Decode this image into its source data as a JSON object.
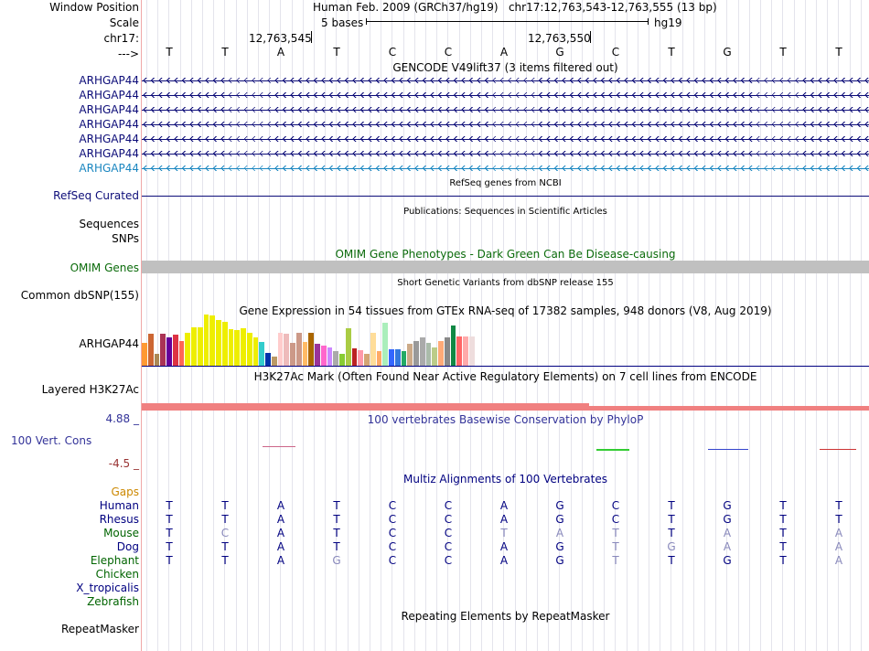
{
  "header": {
    "window_position_label": "Window Position",
    "window_position_text": "Human Feb. 2009 (GRCh37/hg19)   chr17:12,763,543-12,763,555 (13 bp)",
    "scale_label": "Scale",
    "scale_text": "5 bases",
    "scale_db": "hg19",
    "chrom_label": "chr17:",
    "coord_1": "12,763,545",
    "coord_2": "12,763,550",
    "strand_label": "--->",
    "bases": [
      "T",
      "T",
      "A",
      "T",
      "C",
      "C",
      "A",
      "G",
      "C",
      "T",
      "G",
      "T",
      "T"
    ]
  },
  "gencode": {
    "title": "GENCODE V49lift37 (3 items filtered out)",
    "items": [
      "ARHGAP44",
      "ARHGAP44",
      "ARHGAP44",
      "ARHGAP44",
      "ARHGAP44",
      "ARHGAP44",
      "ARHGAP44"
    ],
    "color": "#0c0c78",
    "last_color": "#1a86c0"
  },
  "refseq": {
    "label": "RefSeq Curated",
    "title": "RefSeq genes from NCBI"
  },
  "publications": {
    "title": "Publications: Sequences in Scientific Articles",
    "label_1": "Sequences",
    "label_2": "SNPs"
  },
  "omim": {
    "title": "OMIM Gene Phenotypes - Dark Green Can Be Disease-causing",
    "label": "OMIM Genes",
    "color": "#0b6b0b"
  },
  "dbsnp": {
    "title": "Short Genetic Variants from dbSNP release 155",
    "label": "Common dbSNP(155)"
  },
  "gtex": {
    "title": "Gene Expression in 54 tissues from GTEx RNA-seq of 17382 samples, 948 donors (V8, Aug 2019)",
    "label": "ARHGAP44",
    "tissues": [
      {
        "v": 0.44,
        "c": "#ff9933"
      },
      {
        "v": 0.62,
        "c": "#cc6633"
      },
      {
        "v": 0.24,
        "c": "#aa8855"
      },
      {
        "v": 0.62,
        "c": "#aa3355"
      },
      {
        "v": 0.56,
        "c": "#660099"
      },
      {
        "v": 0.6,
        "c": "#dd3344"
      },
      {
        "v": 0.49,
        "c": "#ff6655"
      },
      {
        "v": 0.64,
        "c": "#eeee00"
      },
      {
        "v": 0.75,
        "c": "#eeee00"
      },
      {
        "v": 0.75,
        "c": "#eeee00"
      },
      {
        "v": 1.0,
        "c": "#eeee00"
      },
      {
        "v": 0.98,
        "c": "#eeee00"
      },
      {
        "v": 0.89,
        "c": "#eeee00"
      },
      {
        "v": 0.86,
        "c": "#eeee00"
      },
      {
        "v": 0.71,
        "c": "#eeee00"
      },
      {
        "v": 0.69,
        "c": "#eeee00"
      },
      {
        "v": 0.73,
        "c": "#eeee00"
      },
      {
        "v": 0.64,
        "c": "#eeee00"
      },
      {
        "v": 0.56,
        "c": "#eeee00"
      },
      {
        "v": 0.47,
        "c": "#33cccc"
      },
      {
        "v": 0.25,
        "c": "#0033aa"
      },
      {
        "v": 0.18,
        "c": "#bb9966"
      },
      {
        "v": 0.64,
        "c": "#ffcccc"
      },
      {
        "v": 0.62,
        "c": "#eebbbb"
      },
      {
        "v": 0.45,
        "c": "#cc9988"
      },
      {
        "v": 0.65,
        "c": "#cc9988"
      },
      {
        "v": 0.46,
        "c": "#ffbb66"
      },
      {
        "v": 0.64,
        "c": "#aa6600"
      },
      {
        "v": 0.42,
        "c": "#993399"
      },
      {
        "v": 0.4,
        "c": "#ff66cc"
      },
      {
        "v": 0.35,
        "c": "#cc88ff"
      },
      {
        "v": 0.28,
        "c": "#aaaaaa"
      },
      {
        "v": 0.24,
        "c": "#88cc33"
      },
      {
        "v": 0.73,
        "c": "#aacc44"
      },
      {
        "v": 0.34,
        "c": "#bb2222"
      },
      {
        "v": 0.3,
        "c": "#ff99aa"
      },
      {
        "v": 0.24,
        "c": "#d4a574"
      },
      {
        "v": 0.64,
        "c": "#ffdd99"
      },
      {
        "v": 0.28,
        "c": "#ffaa66"
      },
      {
        "v": 0.84,
        "c": "#aaeebb"
      },
      {
        "v": 0.33,
        "c": "#3366ff"
      },
      {
        "v": 0.33,
        "c": "#3377dd"
      },
      {
        "v": 0.28,
        "c": "#22aa66"
      },
      {
        "v": 0.42,
        "c": "#ccaa88"
      },
      {
        "v": 0.49,
        "c": "#999999"
      },
      {
        "v": 0.56,
        "c": "#aaaaaa"
      },
      {
        "v": 0.45,
        "c": "#aabbaa"
      },
      {
        "v": 0.35,
        "c": "#bbcc88"
      },
      {
        "v": 0.49,
        "c": "#ffaa77"
      },
      {
        "v": 0.55,
        "c": "#888888"
      },
      {
        "v": 0.78,
        "c": "#118844"
      },
      {
        "v": 0.58,
        "c": "#ff6666"
      },
      {
        "v": 0.58,
        "c": "#ffaaaa"
      },
      {
        "v": 0.58,
        "c": "#eedddd"
      }
    ]
  },
  "h3k27ac": {
    "title": "H3K27Ac Mark (Often Found Near Active Regulatory Elements) on 7 cell lines from ENCODE",
    "label": "Layered H3K27Ac",
    "color": "#f08080"
  },
  "phylop": {
    "title": "100 vertebrates Basewise Conservation by PhyloP",
    "label": "100 Vert. Cons",
    "max": "4.88 _",
    "min": "-4.5 _",
    "color": "#333399",
    "min_color": "#993333"
  },
  "multiz": {
    "title": "Multiz Alignments of 100 Vertebrates",
    "gaps_label": "Gaps",
    "gaps_color": "#cc8800",
    "reference": [
      "T",
      "T",
      "A",
      "T",
      "C",
      "C",
      "A",
      "G",
      "C",
      "T",
      "G",
      "T",
      "T"
    ],
    "species": [
      {
        "name": "Human",
        "color": "#000080",
        "seq": [
          "T",
          "T",
          "A",
          "T",
          "C",
          "C",
          "A",
          "G",
          "C",
          "T",
          "G",
          "T",
          "T"
        ]
      },
      {
        "name": "Rhesus",
        "color": "#000080",
        "seq": [
          "T",
          "T",
          "A",
          "T",
          "C",
          "C",
          "A",
          "G",
          "C",
          "T",
          "G",
          "T",
          "T"
        ]
      },
      {
        "name": "Mouse",
        "color": "#006400",
        "seq": [
          "T",
          "C",
          "A",
          "T",
          "C",
          "C",
          "T",
          "A",
          "T",
          "T",
          "A",
          "T",
          "A"
        ]
      },
      {
        "name": "Dog",
        "color": "#000080",
        "seq": [
          "T",
          "T",
          "A",
          "T",
          "C",
          "C",
          "A",
          "G",
          "T",
          "G",
          "A",
          "T",
          "A"
        ]
      },
      {
        "name": "Elephant",
        "color": "#006400",
        "seq": [
          "T",
          "T",
          "A",
          "G",
          "C",
          "C",
          "A",
          "G",
          "T",
          "T",
          "G",
          "T",
          "A"
        ]
      },
      {
        "name": "Chicken",
        "color": "#006400",
        "seq": []
      },
      {
        "name": "X_tropicalis",
        "color": "#000080",
        "seq": []
      },
      {
        "name": "Zebrafish",
        "color": "#006400",
        "seq": []
      }
    ]
  },
  "repeatmasker": {
    "title": "Repeating Elements by RepeatMasker",
    "label": "RepeatMasker"
  }
}
